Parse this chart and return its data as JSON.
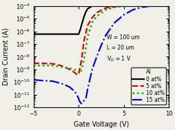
{
  "title": "",
  "xlabel": "Gate Voltage (V)",
  "ylabel": "Drain Current (A)",
  "xlim": [
    -5,
    10
  ],
  "ylim_log": [
    -12,
    -4
  ],
  "annotation_line1": "W = 100 um",
  "annotation_line2": "L = 20 um",
  "annotation_line3": "V$_D$ = 1 V",
  "legend_labels": [
    "0 at%",
    "5 at%",
    "10 at%",
    "15 at%"
  ],
  "legend_title": "Al",
  "colors": [
    "black",
    "#dd0000",
    "#00aa00",
    "#0000dd"
  ],
  "linestyles": [
    "-",
    "--",
    ":",
    "-."
  ],
  "linewidths": [
    1.6,
    1.6,
    1.8,
    1.6
  ],
  "bg_color": "#f0f0e8",
  "curves": {
    "black": {
      "vg": [
        -5.0,
        -4.0,
        -3.0,
        -2.0,
        -1.5,
        -1.0,
        -0.5,
        -0.2,
        0.0,
        0.2,
        0.4,
        0.6,
        0.8,
        1.0,
        1.5,
        2.0,
        3.0,
        4.0,
        5.0,
        6.0,
        7.0,
        8.0,
        9.0,
        10.0
      ],
      "id": [
        6e-07,
        6e-07,
        6e-07,
        6e-07,
        6e-07,
        6e-07,
        6e-07,
        6e-07,
        6e-07,
        1.5e-06,
        5e-06,
        1.5e-05,
        3.5e-05,
        6e-05,
        0.0001,
        0.00012,
        0.00014,
        0.00015,
        0.000155,
        0.000158,
        0.00016,
        0.000162,
        0.000163,
        0.000165
      ]
    },
    "red": {
      "vg": [
        -5.0,
        -4.0,
        -3.0,
        -2.5,
        -2.0,
        -1.5,
        -1.0,
        -0.5,
        -0.2,
        0.0,
        0.3,
        0.6,
        1.0,
        1.5,
        2.0,
        3.0,
        4.0,
        5.0,
        6.0,
        7.0,
        8.0,
        9.0,
        10.0
      ],
      "id": [
        3e-09,
        3e-09,
        2.8e-09,
        2.5e-09,
        2e-09,
        1.5e-09,
        1e-09,
        6e-10,
        4e-10,
        4e-10,
        5e-09,
        2e-07,
        3e-06,
        1.2e-05,
        3e-05,
        7e-05,
        9e-05,
        0.000105,
        0.000112,
        0.000117,
        0.00012,
        0.000122,
        0.000125
      ]
    },
    "green": {
      "vg": [
        -5.0,
        -4.0,
        -3.0,
        -2.5,
        -2.0,
        -1.5,
        -1.0,
        -0.5,
        -0.2,
        0.0,
        0.2,
        0.5,
        0.8,
        1.0,
        1.5,
        2.0,
        3.0,
        4.0,
        5.0,
        6.0,
        7.0,
        8.0,
        9.0,
        10.0
      ],
      "id": [
        2e-09,
        2e-09,
        2e-09,
        1.8e-09,
        1.6e-09,
        1.4e-09,
        1.2e-09,
        1e-09,
        8e-10,
        6e-10,
        5e-10,
        3e-09,
        5e-08,
        4e-07,
        5e-06,
        1.5e-05,
        5e-05,
        8e-05,
        0.0001,
        0.00011,
        0.000115,
        0.000118,
        0.00012,
        0.000122
      ]
    },
    "blue": {
      "vg": [
        -5.0,
        -4.0,
        -3.0,
        -2.5,
        -2.0,
        -1.5,
        -1.0,
        -0.5,
        -0.2,
        0.0,
        0.1,
        0.3,
        0.5,
        0.8,
        1.0,
        1.5,
        2.0,
        2.5,
        3.0,
        4.0,
        5.0,
        6.0,
        7.0,
        8.0,
        9.0,
        10.0
      ],
      "id": [
        1.5e-10,
        1.3e-10,
        1.2e-10,
        1e-10,
        8e-11,
        6e-11,
        4e-11,
        2e-11,
        1e-11,
        5e-12,
        3e-12,
        2e-12,
        3e-12,
        5e-12,
        3e-11,
        1e-09,
        1e-08,
        8e-08,
        5e-07,
        5e-06,
        2e-05,
        5e-05,
        8e-05,
        0.0001,
        0.00011,
        0.00012
      ]
    }
  }
}
